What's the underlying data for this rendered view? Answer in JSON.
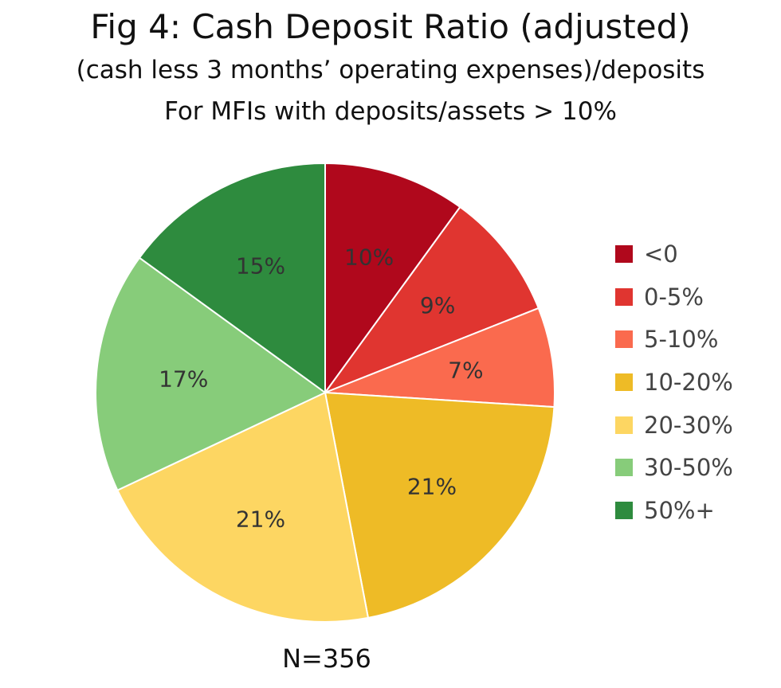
{
  "chart_data": {
    "type": "pie",
    "title": "Fig 4: Cash Deposit Ratio (adjusted)",
    "subtitle_line1": "(cash less 3 months’ operating expenses)/deposits",
    "subtitle_line2": "For MFIs with deposits/assets > 10%",
    "note": "N=356",
    "legend_position": "right",
    "slices": [
      {
        "label": "<0",
        "value": 10,
        "data_label": "10%",
        "color": "#B0081C"
      },
      {
        "label": "0-5%",
        "value": 9,
        "data_label": "9%",
        "color": "#E03530"
      },
      {
        "label": "5-10%",
        "value": 7,
        "data_label": "7%",
        "color": "#FA6A4E"
      },
      {
        "label": "10-20%",
        "value": 21,
        "data_label": "21%",
        "color": "#EEBB26"
      },
      {
        "label": "20-30%",
        "value": 21,
        "data_label": "21%",
        "color": "#FDD662"
      },
      {
        "label": "30-50%",
        "value": 17,
        "data_label": "17%",
        "color": "#87CC7A"
      },
      {
        "label": "50%+",
        "value": 15,
        "data_label": "15%",
        "color": "#2E8B3E"
      }
    ]
  }
}
